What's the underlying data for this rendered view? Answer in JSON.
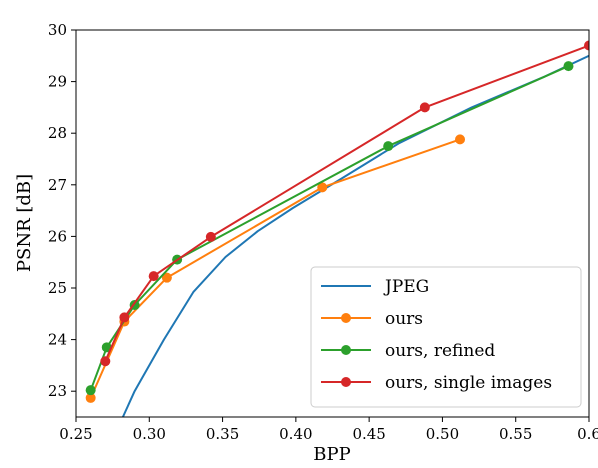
{
  "chart_data": {
    "type": "line",
    "title": "",
    "xlabel": "BPP",
    "ylabel": "PSNR [dB]",
    "xlim": [
      0.25,
      0.6
    ],
    "ylim": [
      22.5,
      30
    ],
    "xticks": [
      0.25,
      0.3,
      0.35,
      0.4,
      0.45,
      0.5,
      0.55,
      0.6
    ],
    "xtick_labels": [
      "0.25",
      "0.30",
      "0.35",
      "0.40",
      "0.45",
      "0.50",
      "0.55",
      "0.6"
    ],
    "yticks": [
      23,
      24,
      25,
      26,
      27,
      28,
      29,
      30
    ],
    "ytick_labels": [
      "23",
      "24",
      "25",
      "26",
      "27",
      "28",
      "29",
      "30"
    ],
    "grid": false,
    "legend": "bottom-right",
    "series": [
      {
        "name": "JPEG",
        "color": "#1f77b4",
        "markers": false,
        "x": [
          0.282,
          0.29,
          0.31,
          0.33,
          0.352,
          0.374,
          0.398,
          0.43,
          0.47,
          0.52,
          0.57,
          0.6
        ],
        "y": [
          22.5,
          23.0,
          24.0,
          24.92,
          25.6,
          26.1,
          26.55,
          27.1,
          27.8,
          28.5,
          29.1,
          29.5
        ]
      },
      {
        "name": "ours",
        "color": "#ff7f0e",
        "markers": true,
        "x": [
          0.26,
          0.283,
          0.312,
          0.418,
          0.512
        ],
        "y": [
          22.87,
          24.35,
          25.2,
          26.95,
          27.88
        ]
      },
      {
        "name": "ours, refined",
        "color": "#2ca02c",
        "markers": true,
        "x": [
          0.26,
          0.271,
          0.29,
          0.319,
          0.463,
          0.586
        ],
        "y": [
          23.02,
          23.85,
          24.67,
          25.55,
          27.75,
          29.3
        ]
      },
      {
        "name": "ours, single images",
        "color": "#d62728",
        "markers": true,
        "x": [
          0.27,
          0.283,
          0.303,
          0.342,
          0.488,
          0.6
        ],
        "y": [
          23.58,
          24.43,
          25.23,
          25.99,
          28.5,
          29.7
        ]
      }
    ]
  }
}
